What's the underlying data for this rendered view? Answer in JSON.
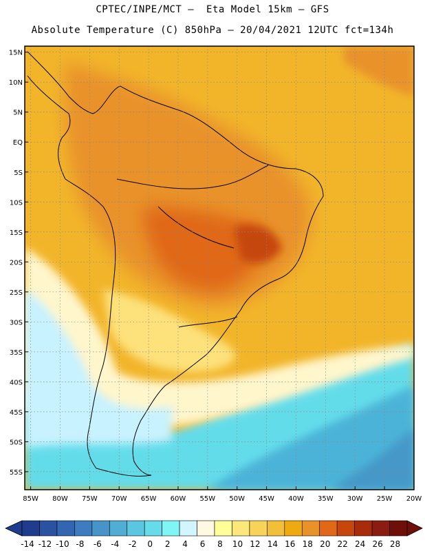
{
  "title_line1": "CPTEC/INPE/MCT –  Eta Model 15km – GFS",
  "title_line2": "Absolute Temperature (C) 850hPa – 20/04/2021 12UTC fct=134h",
  "lat_ticks": [
    "15N",
    "10N",
    "5N",
    "EQ",
    "5S",
    "10S",
    "15S",
    "20S",
    "25S",
    "30S",
    "35S",
    "40S",
    "45S",
    "50S",
    "55S"
  ],
  "lon_ticks": [
    "85W",
    "80W",
    "75W",
    "70W",
    "65W",
    "60W",
    "55W",
    "50W",
    "45W",
    "40W",
    "35W",
    "30W",
    "25W",
    "20W"
  ],
  "map": {
    "lon_min": -86,
    "lon_max": -20,
    "lat_min": -58,
    "lat_max": 16
  },
  "colorbar": {
    "labels": [
      "-14",
      "-12",
      "-10",
      "-8",
      "-6",
      "-4",
      "-2",
      "0",
      "2",
      "4",
      "6",
      "8",
      "10",
      "12",
      "14",
      "16",
      "18",
      "20",
      "22",
      "24",
      "26",
      "28"
    ],
    "colors": [
      "#1f3d8c",
      "#2a52a0",
      "#3366b0",
      "#3d7dbf",
      "#4794c8",
      "#50aed4",
      "#5ac6df",
      "#66dcea",
      "#7ff5f5",
      "#d2f6ff",
      "#fff8e2",
      "#ffff9a",
      "#fce87a",
      "#f7d35a",
      "#f2bf38",
      "#eeaa10",
      "#e9922a",
      "#e06816",
      "#c6460b",
      "#a82c0b",
      "#8a1c12",
      "#6e1008"
    ]
  }
}
